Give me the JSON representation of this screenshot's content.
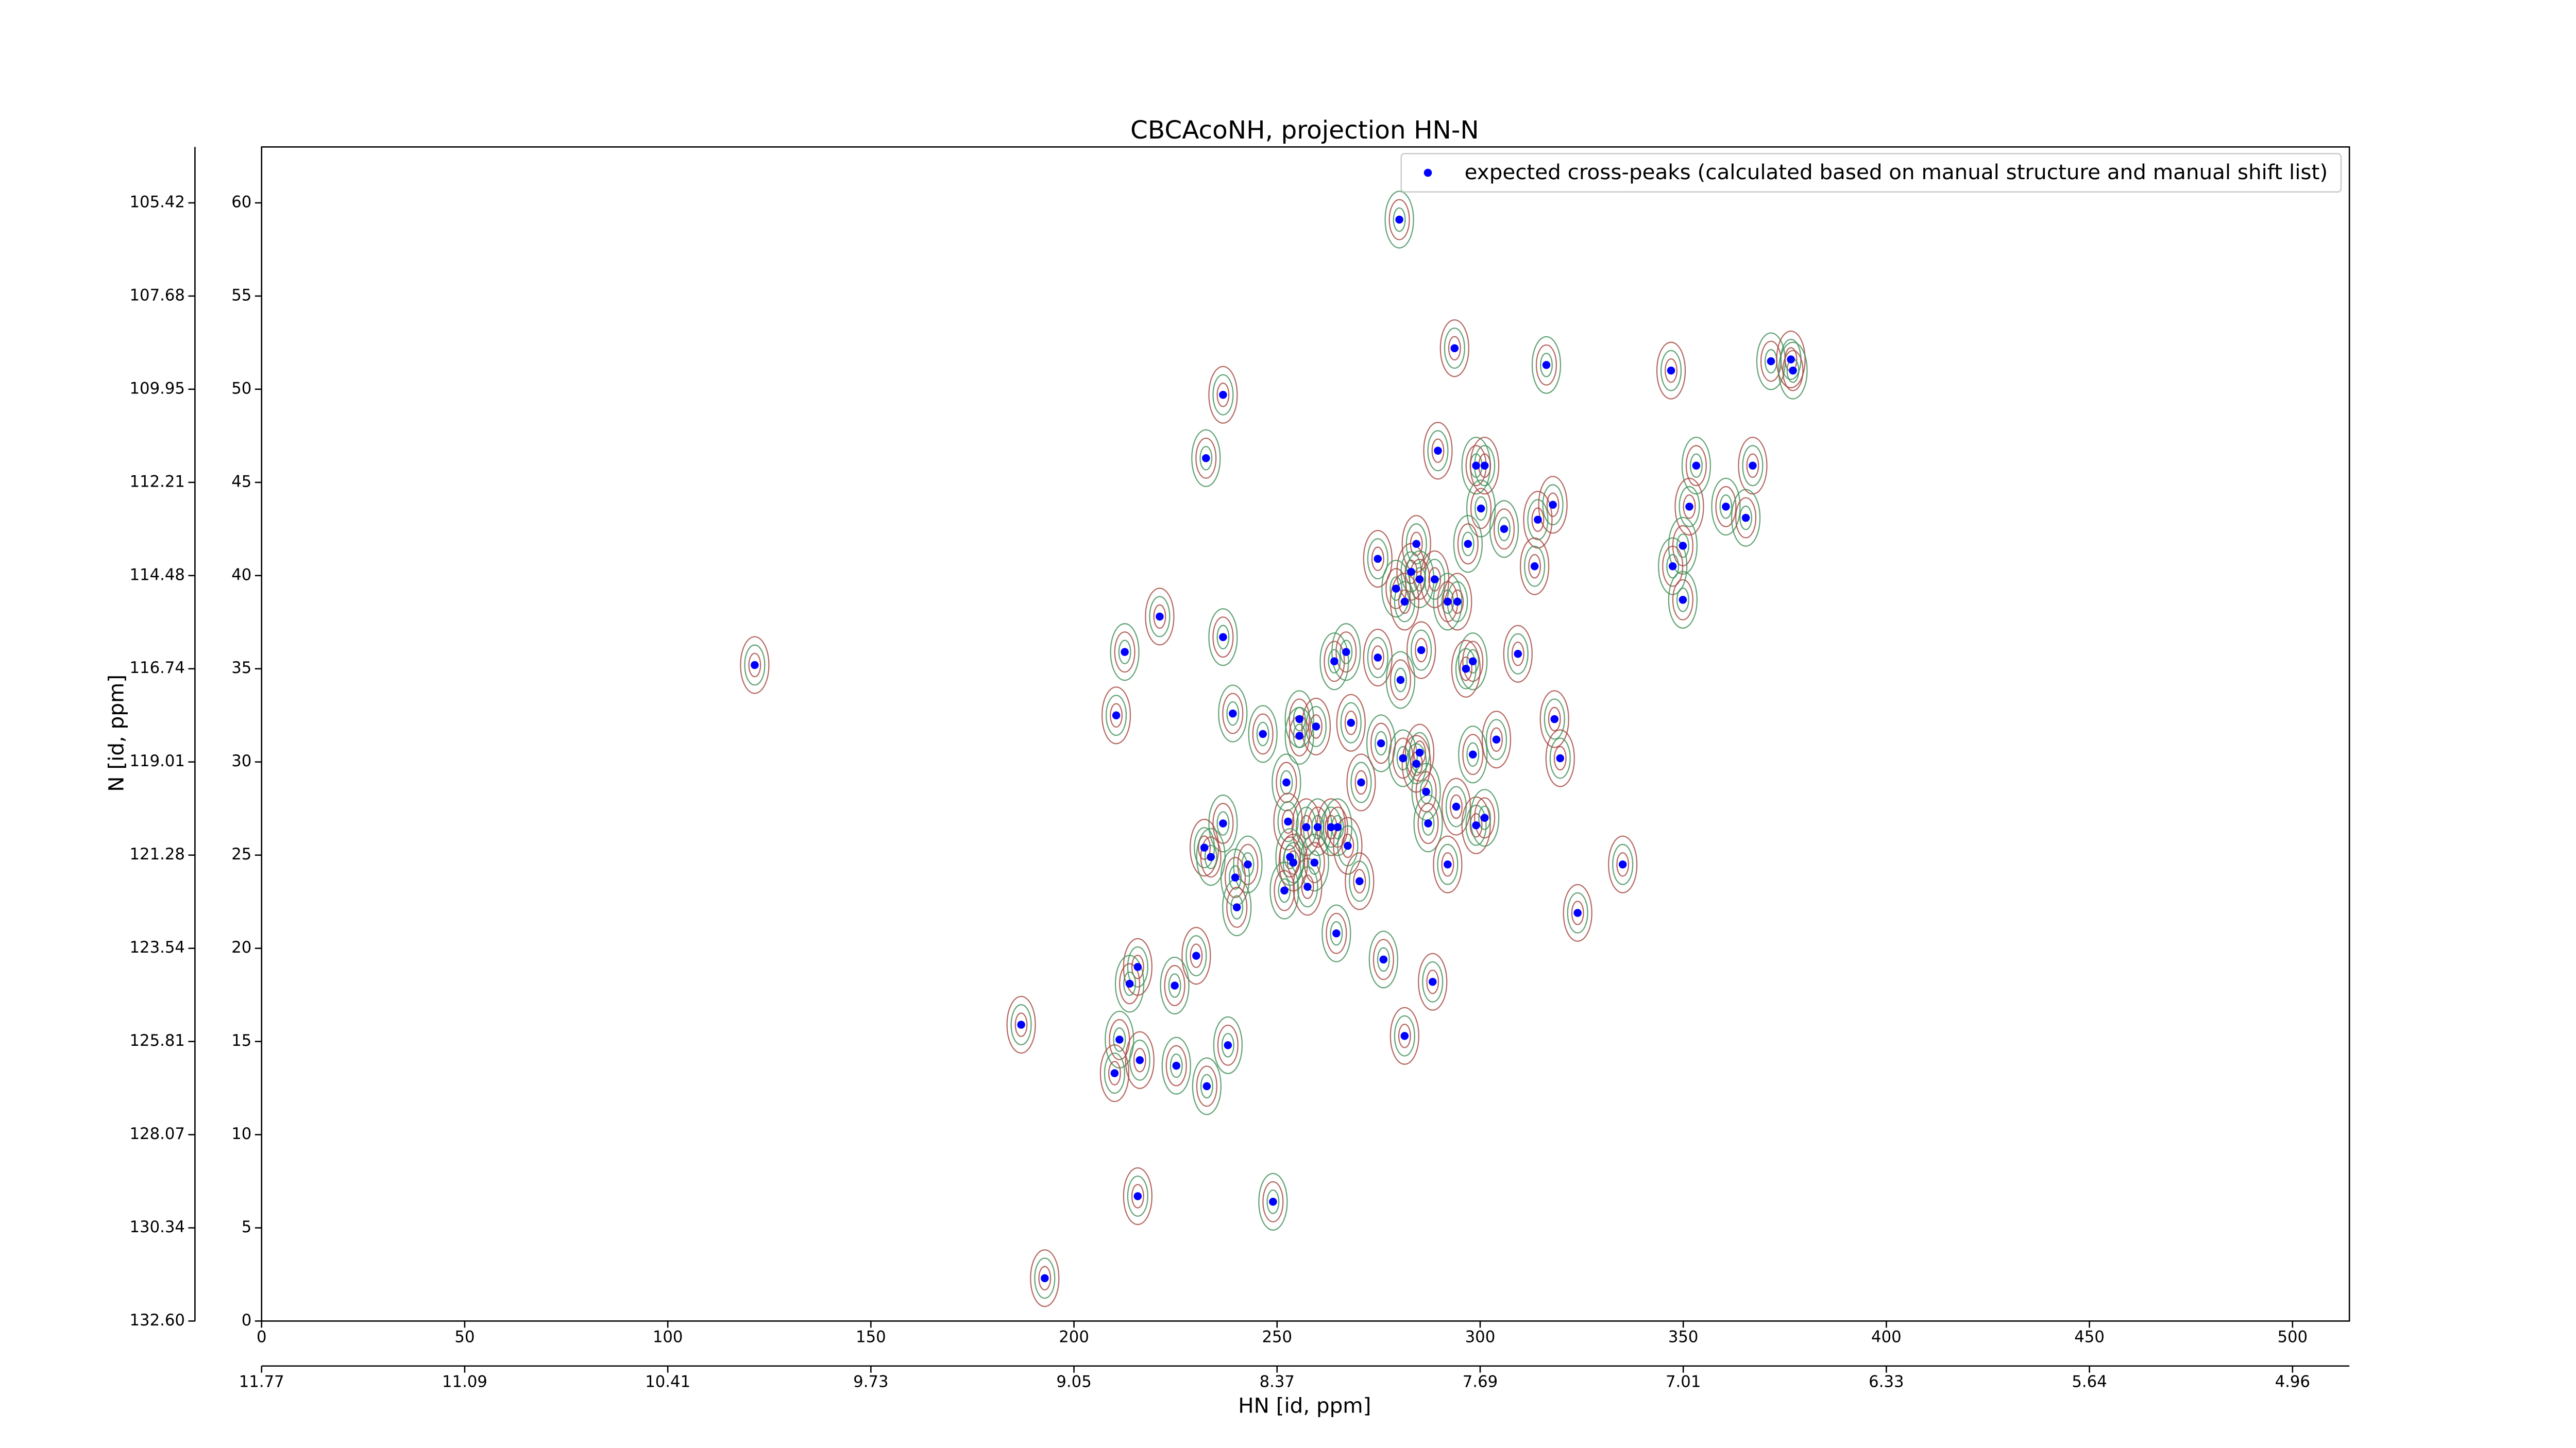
{
  "chart_data": {
    "type": "scatter",
    "title": "CBCAcoNH, projection HN-N",
    "x_label": "HN [id, ppm]",
    "y_label": "N [id, ppm]",
    "xlim": [
      0,
      514
    ],
    "ylim": [
      0,
      63
    ],
    "xticks": [
      0,
      50,
      100,
      150,
      200,
      250,
      300,
      350,
      400,
      450,
      500
    ],
    "yticks": [
      0,
      5,
      10,
      15,
      20,
      25,
      30,
      35,
      40,
      45,
      50,
      55,
      60
    ],
    "x2ticks": [
      {
        "value": 0,
        "label": "11.77"
      },
      {
        "value": 50,
        "label": "11.09"
      },
      {
        "value": 100,
        "label": "10.41"
      },
      {
        "value": 150,
        "label": "9.73"
      },
      {
        "value": 200,
        "label": "9.05"
      },
      {
        "value": 250,
        "label": "8.37"
      },
      {
        "value": 300,
        "label": "7.69"
      },
      {
        "value": 350,
        "label": "7.01"
      },
      {
        "value": 400,
        "label": "6.33"
      },
      {
        "value": 450,
        "label": "5.64"
      },
      {
        "value": 500,
        "label": "4.96"
      }
    ],
    "y2ticks": [
      {
        "value": 0,
        "label": "132.60"
      },
      {
        "value": 5,
        "label": "130.34"
      },
      {
        "value": 10,
        "label": "128.07"
      },
      {
        "value": 15,
        "label": "125.81"
      },
      {
        "value": 20,
        "label": "123.54"
      },
      {
        "value": 25,
        "label": "121.28"
      },
      {
        "value": 30,
        "label": "119.01"
      },
      {
        "value": 35,
        "label": "116.74"
      },
      {
        "value": 40,
        "label": "114.48"
      },
      {
        "value": 45,
        "label": "112.21"
      },
      {
        "value": 50,
        "label": "109.95"
      },
      {
        "value": 55,
        "label": "107.68"
      },
      {
        "value": 60,
        "label": "105.42"
      }
    ],
    "legend": "upper right",
    "contour_colors": [
      "#a4453c",
      "#3d8d55"
    ],
    "series": [
      {
        "name": "expected cross-peaks (calculated based on manual structure and manual shift list)",
        "color": "#0000ff",
        "x": [
          280.1,
          293.7,
          316.3,
          347.0,
          371.6,
          376.5,
          377.0,
          236.7,
          232.5,
          289.6,
          299.0,
          301.1,
          353.2,
          367.1,
          300.2,
          351.5,
          360.5,
          317.9,
          305.9,
          314.2,
          365.4,
          284.3,
          297.0,
          274.8,
          349.9,
          313.4,
          347.4,
          283.0,
          285.1,
          288.8,
          279.3,
          281.4,
          292.0,
          294.4,
          349.9,
          221.1,
          236.7,
          285.5,
          267.0,
          274.8,
          264.1,
          309.3,
          298.2,
          296.5,
          212.5,
          121.4,
          280.4,
          210.4,
          239.1,
          318.3,
          255.5,
          259.6,
          246.5,
          268.2,
          255.5,
          304.0,
          275.6,
          285.1,
          281.0,
          284.3,
          298.2,
          319.7,
          252.3,
          270.7,
          286.7,
          294.1,
          236.7,
          252.7,
          287.2,
          299.0,
          301.1,
          257.2,
          260.0,
          263.3,
          264.9,
          232.1,
          233.7,
          267.4,
          253.2,
          254.0,
          242.8,
          292.0,
          259.2,
          335.1,
          239.7,
          270.3,
          251.8,
          257.5,
          240.1,
          324.0,
          264.6,
          230.1,
          276.2,
          215.7,
          213.7,
          288.3,
          224.8,
          187.0,
          211.2,
          281.4,
          237.9,
          216.2,
          225.2,
          210.0,
          232.7,
          215.7,
          249.0,
          192.8
        ],
        "y": [
          59.1,
          52.2,
          51.3,
          51.0,
          51.5,
          51.6,
          51.0,
          49.7,
          46.3,
          46.7,
          45.9,
          45.9,
          45.9,
          45.9,
          43.6,
          43.7,
          43.7,
          43.8,
          42.5,
          43.0,
          43.1,
          41.7,
          41.7,
          40.9,
          41.6,
          40.5,
          40.5,
          40.2,
          39.8,
          39.8,
          39.3,
          38.6,
          38.6,
          38.6,
          38.7,
          37.8,
          36.7,
          36.0,
          35.9,
          35.6,
          35.4,
          35.8,
          35.4,
          35.0,
          35.9,
          35.2,
          34.4,
          32.5,
          32.6,
          32.3,
          32.3,
          31.9,
          31.5,
          32.1,
          31.4,
          31.2,
          31.0,
          30.5,
          30.2,
          29.9,
          30.4,
          30.2,
          28.9,
          28.9,
          28.4,
          27.6,
          26.7,
          26.8,
          26.7,
          26.6,
          27.0,
          26.5,
          26.5,
          26.5,
          26.5,
          25.4,
          24.9,
          25.5,
          24.9,
          24.6,
          24.5,
          24.5,
          24.6,
          24.5,
          23.8,
          23.6,
          23.1,
          23.3,
          22.2,
          21.9,
          20.8,
          19.6,
          19.4,
          19.0,
          18.1,
          18.2,
          18.0,
          15.9,
          15.1,
          15.3,
          14.8,
          14.0,
          13.7,
          13.3,
          12.6,
          6.7,
          6.4,
          2.3
        ]
      }
    ]
  }
}
